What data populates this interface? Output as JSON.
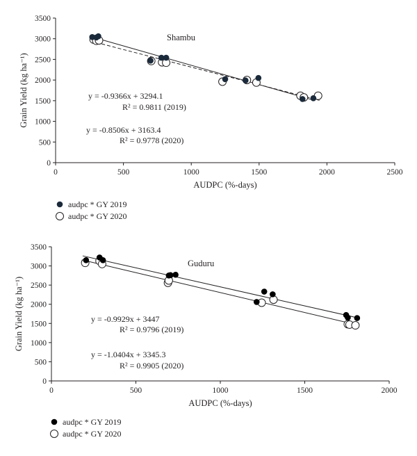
{
  "chart_data": [
    {
      "type": "scatter",
      "title": "Shambu",
      "xlabel": "AUDPC (%-days)",
      "ylabel": "Grain Yield (kg ha⁻¹)",
      "xlim": [
        0,
        2500
      ],
      "ylim": [
        0,
        3500
      ],
      "x_ticks": [
        "0",
        "500",
        "1000",
        "1500",
        "2000",
        "2500"
      ],
      "y_ticks": [
        "0",
        "500",
        "1000",
        "1500",
        "2000",
        "2500",
        "3000",
        "3500"
      ],
      "grid": false,
      "legend_position": "bottom-left",
      "series": [
        {
          "name": "audpc * GY 2019",
          "marker": "filled-circle",
          "color": "#1b2a3b",
          "trendline": "solid",
          "slope": -0.9366,
          "intercept": 3294.1,
          "points": [
            [
              270,
              3040
            ],
            [
              300,
              3030
            ],
            [
              315,
              3060
            ],
            [
              700,
              2470
            ],
            [
              780,
              2540
            ],
            [
              815,
              2540
            ],
            [
              1250,
              2020
            ],
            [
              1400,
              1990
            ],
            [
              1495,
              2050
            ],
            [
              1820,
              1540
            ],
            [
              1900,
              1560
            ]
          ]
        },
        {
          "name": "audpc * GY 2020",
          "marker": "open-circle",
          "color": "#231f20",
          "trendline": "dashed",
          "slope": -0.8506,
          "intercept": 3163.4,
          "points": [
            [
              280,
              2980
            ],
            [
              300,
              2950
            ],
            [
              320,
              2960
            ],
            [
              705,
              2460
            ],
            [
              785,
              2430
            ],
            [
              815,
              2420
            ],
            [
              1230,
              1960
            ],
            [
              1410,
              2000
            ],
            [
              1480,
              1940
            ],
            [
              1805,
              1620
            ],
            [
              1830,
              1580
            ],
            [
              1935,
              1620
            ]
          ]
        }
      ],
      "annotations": [
        {
          "equation": "y = -0.9366x + 3294.1",
          "r2": "R² = 0.9811 (2019)"
        },
        {
          "equation": "y = -0.8506x + 3163.4",
          "r2": "R² = 0.9778 (2020)"
        }
      ]
    },
    {
      "type": "scatter",
      "title": "Guduru",
      "xlabel": "AUDPC (%-days)",
      "ylabel": "Grain Yield (kg ha⁻¹)",
      "xlim": [
        0,
        2000
      ],
      "ylim": [
        0,
        3500
      ],
      "x_ticks": [
        "0",
        "500",
        "1000",
        "1500",
        "2000"
      ],
      "y_ticks": [
        "0",
        "500",
        "1000",
        "1500",
        "2000",
        "2500",
        "3000",
        "3500"
      ],
      "grid": false,
      "legend_position": "bottom-left",
      "series": [
        {
          "name": "audpc * GY 2019",
          "marker": "filled-circle",
          "color": "#000000",
          "trendline": "solid",
          "slope": -0.9929,
          "intercept": 3447,
          "points": [
            [
              205,
              3150
            ],
            [
              285,
              3220
            ],
            [
              305,
              3150
            ],
            [
              695,
              2750
            ],
            [
              705,
              2760
            ],
            [
              735,
              2770
            ],
            [
              1215,
              2060
            ],
            [
              1260,
              2330
            ],
            [
              1310,
              2260
            ],
            [
              1745,
              1720
            ],
            [
              1755,
              1650
            ],
            [
              1810,
              1640
            ]
          ]
        },
        {
          "name": "audpc * GY 2020",
          "marker": "open-circle",
          "color": "#231f20",
          "trendline": "solid",
          "slope": -1.0404,
          "intercept": 3345.3,
          "points": [
            [
              200,
              3080
            ],
            [
              285,
              3130
            ],
            [
              300,
              3050
            ],
            [
              690,
              2560
            ],
            [
              695,
              2620
            ],
            [
              1245,
              2040
            ],
            [
              1315,
              2120
            ],
            [
              1755,
              1480
            ],
            [
              1765,
              1470
            ],
            [
              1800,
              1450
            ]
          ]
        }
      ],
      "annotations": [
        {
          "equation": "y = -0.9929x + 3447",
          "r2": "R² = 0.9796 (2019)"
        },
        {
          "equation": "y = -1.0404x + 3345.3",
          "r2": "R² = 0.9905 (2020)"
        }
      ]
    }
  ]
}
